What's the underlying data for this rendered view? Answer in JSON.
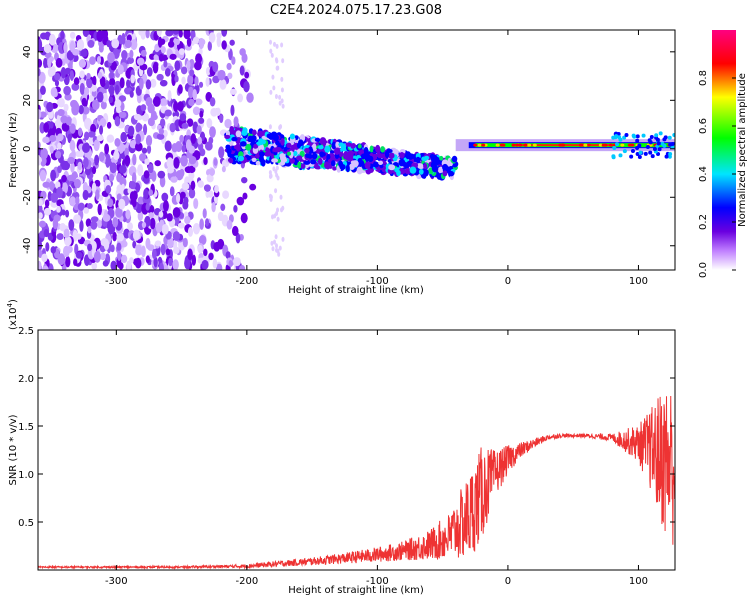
{
  "title": "C2E4.2024.075.17.23.G08",
  "chart_data": [
    {
      "type": "heatmap",
      "xlabel": "Height of straight line (km)",
      "ylabel": "Frequency (Hz)",
      "xlim": [
        -360,
        128
      ],
      "ylim": [
        -50,
        49
      ],
      "x_ticks": [
        -300,
        -200,
        -100,
        0,
        100
      ],
      "y_ticks": [
        -40,
        -20,
        0,
        20,
        40
      ],
      "grid": false,
      "colorbar": {
        "label": "Normalized spectral amplitude",
        "range": [
          0.0,
          1.0
        ],
        "ticks": [
          0.0,
          0.2,
          0.4,
          0.6,
          0.8
        ],
        "colormap": [
          "#ffffff",
          "#6a00e0",
          "#0000ff",
          "#00e5ff",
          "#00ff00",
          "#ffff00",
          "#ff0000",
          "#ff0080"
        ]
      },
      "regions": [
        {
          "desc": "scattered noise",
          "x": [
            -360,
            -195
          ],
          "freq": [
            -50,
            49
          ],
          "amplitude": 0.1
        },
        {
          "desc": "broadband signal",
          "x": [
            -215,
            -40
          ],
          "freq_center": [
            2,
            -8
          ],
          "amplitude": 0.3
        },
        {
          "desc": "tone",
          "x": [
            -30,
            128
          ],
          "freq_center": 1.5,
          "amplitude": 0.9
        }
      ]
    },
    {
      "type": "line",
      "xlabel": "Height of straight line (km)",
      "ylabel": "SNR (10 * v/v)",
      "y_multiplier": "(x10",
      "y_multiplier_exp": "4",
      "y_multiplier_close": ")",
      "xlim": [
        -360,
        128
      ],
      "ylim": [
        0,
        2.5
      ],
      "x_ticks": [
        -300,
        -200,
        -100,
        0,
        100
      ],
      "y_ticks": [
        0.5,
        1.0,
        1.5,
        2.0,
        2.5
      ],
      "y_tick_labels": [
        "0.5",
        "1.0",
        "1.5",
        "2.0",
        "2.5"
      ],
      "grid": false,
      "series": [
        {
          "color": "#ee3333",
          "x": [
            -360,
            -300,
            -250,
            -200,
            -180,
            -150,
            -120,
            -100,
            -80,
            -60,
            -45,
            -30,
            -20,
            -10,
            0,
            10,
            20,
            30,
            40,
            60,
            80,
            90,
            100,
            110,
            120,
            128
          ],
          "y": [
            0.03,
            0.03,
            0.03,
            0.04,
            0.06,
            0.09,
            0.13,
            0.16,
            0.2,
            0.26,
            0.35,
            0.55,
            0.8,
            1.0,
            1.15,
            1.25,
            1.32,
            1.38,
            1.4,
            1.4,
            1.38,
            1.35,
            1.32,
            1.25,
            1.15,
            1.1
          ],
          "noise_envelope": [
            0.01,
            0.01,
            0.01,
            0.02,
            0.03,
            0.04,
            0.06,
            0.08,
            0.1,
            0.16,
            0.25,
            0.45,
            0.5,
            0.25,
            0.15,
            0.08,
            0.05,
            0.03,
            0.02,
            0.02,
            0.04,
            0.12,
            0.2,
            0.45,
            0.8,
            0.9
          ]
        }
      ]
    }
  ]
}
